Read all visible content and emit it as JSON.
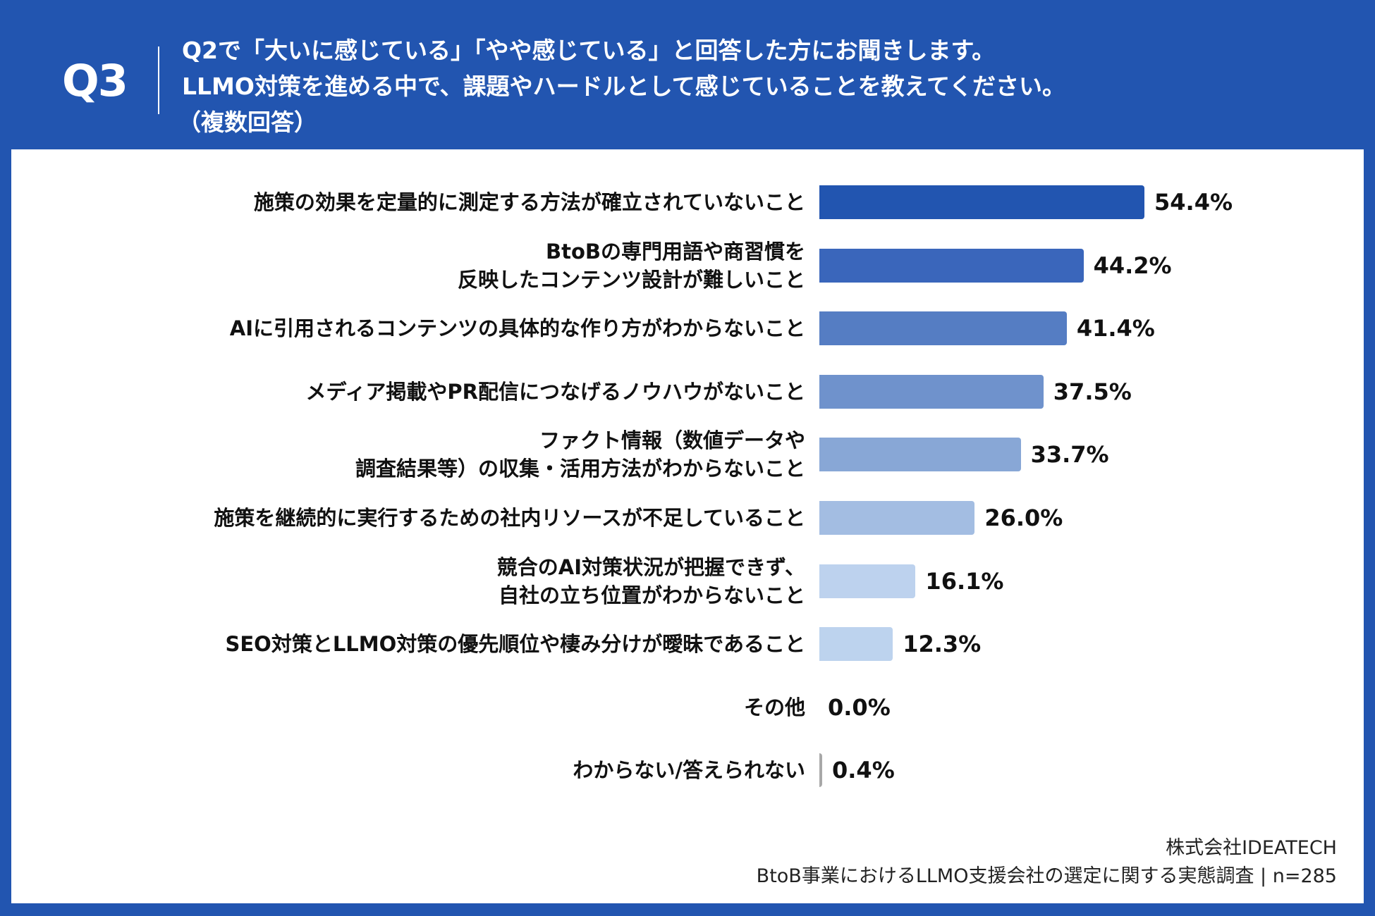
{
  "header": {
    "question_number": "Q3",
    "lines": [
      "Q2で「大いに感じている」「やや感じている」と回答した方にお聞きします。",
      "LLMO対策を進める中で、課題やハードルとして感じていることを教えてください。",
      "（複数回答）"
    ]
  },
  "chart_data": {
    "type": "bar",
    "orientation": "horizontal",
    "categories": [
      [
        "施策の効果を定量的に測定する方法が確立されていないこと"
      ],
      [
        "BtoBの専門用語や商習慣を",
        "反映したコンテンツ設計が難しいこと"
      ],
      [
        "AIに引用されるコンテンツの具体的な作り方がわからないこと"
      ],
      [
        "メディア掲載やPR配信につなげるノウハウがないこと"
      ],
      [
        "ファクト情報（数値データや",
        "調査結果等）の収集・活用方法がわからないこと"
      ],
      [
        "施策を継続的に実行するための社内リソースが不足していること"
      ],
      [
        "競合のAI対策状況が把握できず、",
        "自社の立ち位置がわからないこと"
      ],
      [
        "SEO対策とLLMO対策の優先順位や棲み分けが曖昧であること"
      ],
      [
        "その他"
      ],
      [
        "わからない/答えられない"
      ]
    ],
    "values": [
      54.4,
      44.2,
      41.4,
      37.5,
      33.7,
      26.0,
      16.1,
      12.3,
      0.0,
      0.4
    ],
    "value_labels": [
      "54.4%",
      "44.2%",
      "41.4%",
      "37.5%",
      "33.7%",
      "26.0%",
      "16.1%",
      "12.3%",
      "0.0%",
      "0.4%"
    ],
    "colors": [
      "#2255B0",
      "#3A66BB",
      "#557DC3",
      "#6F92CC",
      "#88A7D6",
      "#A3BDE2",
      "#BDD2EE",
      "#BDD3EE",
      "#BDD3EE",
      "#A8A8A8"
    ],
    "unit": "%",
    "xlim": [
      0,
      60
    ],
    "grid": false,
    "legend": "none"
  },
  "footer": {
    "company": "株式会社IDEATECH",
    "survey": "BtoB事業におけるLLMO支援会社の選定に関する実態調査 | n=285"
  },
  "colors": {
    "header_bg": "#2255B0",
    "panel_bg": "#FFFFFF"
  }
}
